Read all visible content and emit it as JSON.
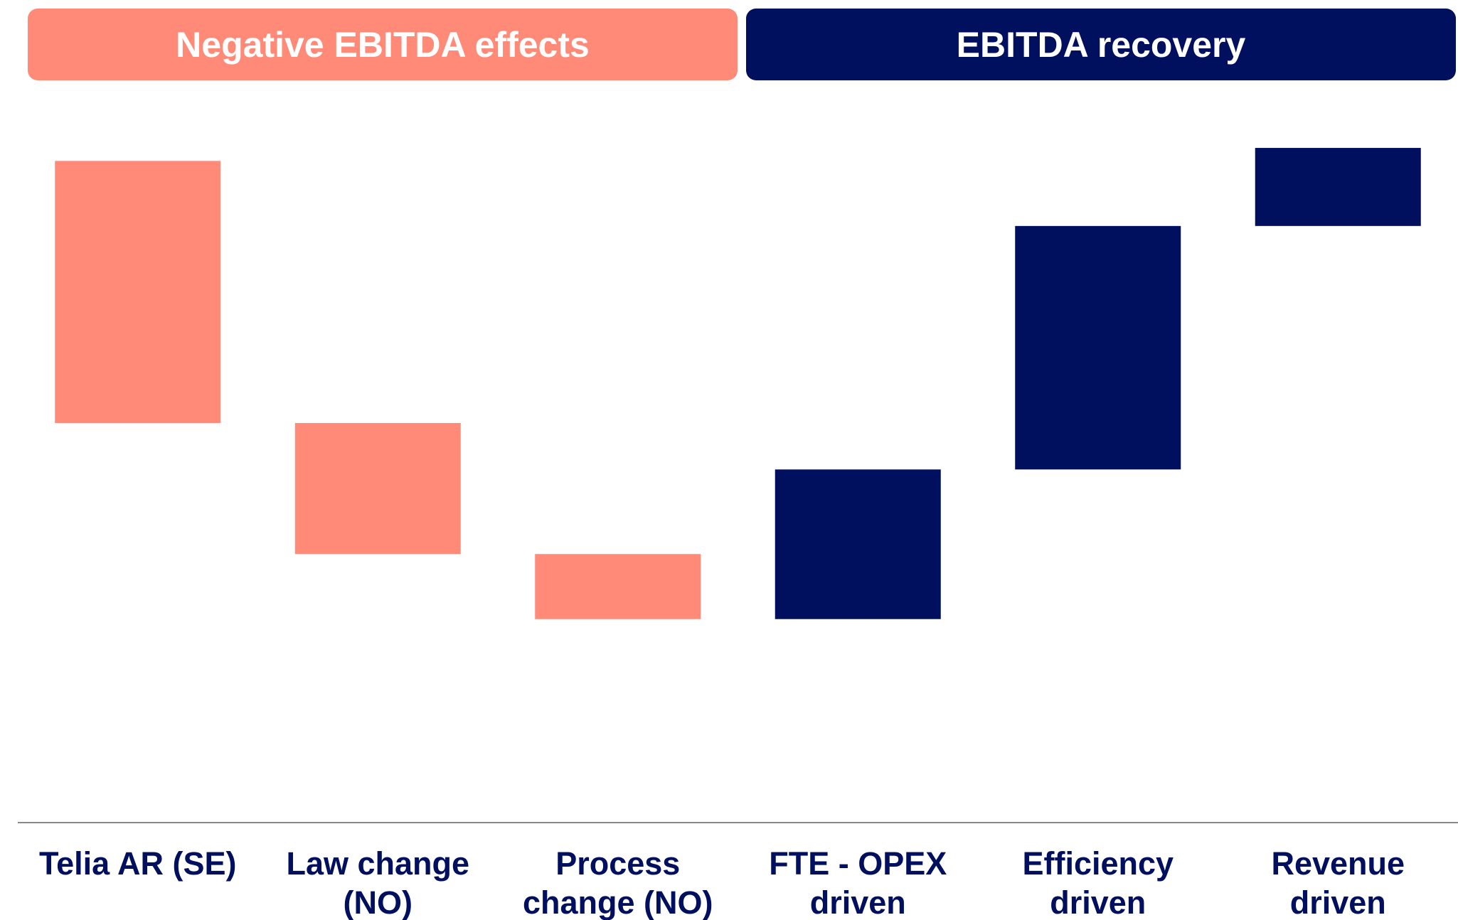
{
  "chart_data": {
    "type": "waterfall",
    "groups": [
      {
        "label": "Negative EBITDA effects",
        "color": "#ff8a78"
      },
      {
        "label": "EBITDA recovery",
        "color": "#00105e"
      }
    ],
    "categories": [
      "Telia AR (SE)",
      "Law change (NO)",
      "Process change (NO)",
      "FTE - OPEX driven",
      "Efficiency driven",
      "Revenue driven"
    ],
    "start": 71.2,
    "values": [
      -28.2,
      -14.1,
      -7,
      16.1,
      26.2,
      8.4
    ],
    "colors": [
      "#ff8a78",
      "#ff8a78",
      "#ff8a78",
      "#00105e",
      "#00105e",
      "#00105e"
    ],
    "ylim": [
      0,
      77.5
    ]
  }
}
